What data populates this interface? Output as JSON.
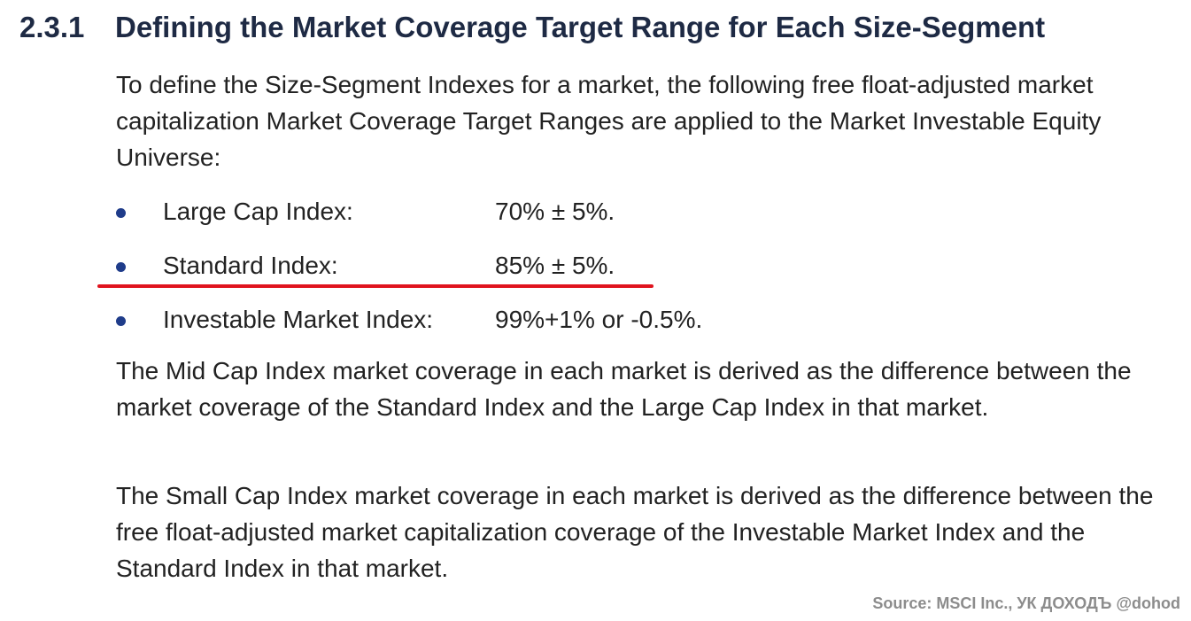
{
  "section": {
    "number": "2.3.1",
    "title": "Defining the Market Coverage Target Range for Each Size-Segment"
  },
  "intro": "To define the Size-Segment Indexes for a market, the following free float-adjusted market capitalization Market Coverage Target Ranges are applied to the Market Investable Equity Universe:",
  "bullets": [
    {
      "label": "Large Cap Index:",
      "value": "70% ± 5%."
    },
    {
      "label": "Standard Index:",
      "value": "85% ± 5%."
    },
    {
      "label": "Investable Market Index:",
      "value": "99%+1% or -0.5%."
    }
  ],
  "mid_cap_paragraph": "The Mid Cap Index market coverage in each market is derived as the difference between the market coverage of the Standard Index and the Large Cap Index in that market.",
  "small_cap_paragraph": "The Small Cap Index market coverage in each market is derived as the difference between the free float-adjusted market capitalization coverage of the Investable Market Index and the Standard Index in that market.",
  "source": "Source: MSCI Inc., УК ДОХОДЪ @dohod",
  "colors": {
    "heading": "#1e2a44",
    "bullet_dot": "#1f3c8a",
    "highlight_underline": "#e0141e",
    "source_text": "#8c8c8c"
  }
}
